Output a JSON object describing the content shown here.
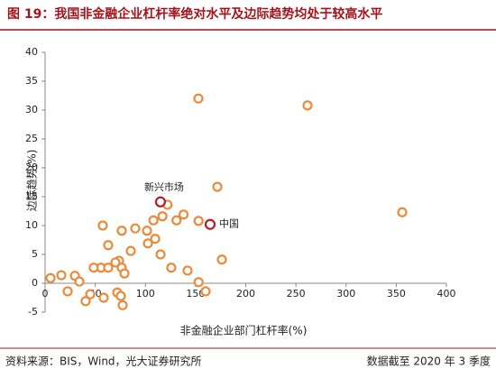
{
  "chart_data": {
    "type": "scatter",
    "title": "图 19：我国非金融企业杠杆率绝对水平及边际趋势均处于较高水平",
    "x_label": "非金融企业部门杠杆率(%)",
    "y_label": "边际趋势(%)",
    "source": "资料来源：BIS，Wind，光大证券研究所",
    "note": "数据截至 2020 年 3 季度",
    "color": "#ea8a3a",
    "highlight_color": "#b0202a",
    "xlim": [
      0,
      400
    ],
    "xticks": [
      0,
      50,
      100,
      150,
      200,
      250,
      300,
      350,
      400
    ],
    "ylim": [
      -5,
      40
    ],
    "yticks": [
      -5,
      0,
      5,
      10,
      15,
      20,
      25,
      30,
      35,
      40
    ],
    "x": [
      152.8,
      261.6,
      356,
      171.7,
      122,
      138,
      131,
      117,
      108,
      153,
      57.5,
      89.9,
      76.4,
      101.6,
      109.7,
      102.5,
      62.9,
      85.4,
      115.1,
      73.7,
      70.1,
      55.7,
      62.9,
      48.5,
      76.4,
      79.1,
      142,
      176.2,
      125.8,
      29.7,
      16.2,
      5.4,
      34.2,
      22.5,
      45,
      40.4,
      58.4,
      71.9,
      77.3,
      75.5,
      153,
      160
    ],
    "values": [
      32.0,
      30.8,
      12.3,
      16.7,
      13.6,
      11.9,
      10.9,
      11.6,
      10.9,
      10.8,
      10.0,
      9.5,
      9.1,
      9.1,
      7.7,
      6.9,
      6.6,
      5.6,
      5.0,
      3.9,
      3.6,
      2.7,
      2.7,
      2.7,
      2.7,
      1.7,
      2.2,
      4.1,
      2.7,
      1.3,
      1.4,
      0.9,
      0.3,
      -1.4,
      -1.9,
      -3.1,
      -2.5,
      -1.6,
      -3.8,
      -2.2,
      0.2,
      -1.4
    ],
    "annotations": [
      {
        "text": "新兴市场",
        "x": 115,
        "y": 14.1
      },
      {
        "text": "中国",
        "x": 164.5,
        "y": 10.2
      }
    ]
  }
}
